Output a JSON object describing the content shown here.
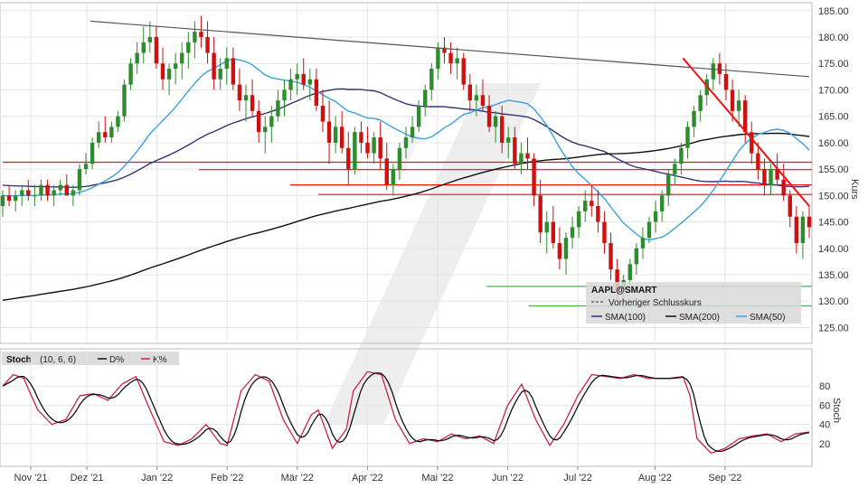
{
  "chart_data": [
    {
      "type": "candlestick",
      "panel": "price",
      "symbol": "AAPL@SMART",
      "ylabel": "Kurs",
      "ylim": [
        122,
        186.5
      ],
      "yticks": [
        125,
        130,
        135,
        140,
        145,
        150,
        155,
        160,
        165,
        170,
        175,
        180,
        185
      ],
      "ytick_labels": [
        "125.00",
        "130.00",
        "135.00",
        "140.00",
        "145.00",
        "150.00",
        "155.00",
        "160.00",
        "165.00",
        "170.00",
        "175.00",
        "180.00",
        "185.00"
      ],
      "x_tick_labels": [
        "Nov '21",
        "Dez '21",
        "Jan '22",
        "Feb '22",
        "Mär '22",
        "Apr '22",
        "Mai '22",
        "Jun '22",
        "Jul '22",
        "Aug '22",
        "Sep '22"
      ],
      "x_tick_positions": [
        8,
        24,
        44,
        64,
        84,
        104,
        124,
        144,
        164,
        186,
        206
      ],
      "x_range": [
        0,
        230
      ],
      "candle_colors": {
        "up": "#2e8b2e",
        "down": "#cc1111"
      },
      "ohlc": [
        [
          148,
          151,
          146,
          150
        ],
        [
          150,
          152,
          148,
          149
        ],
        [
          149,
          151,
          147,
          150
        ],
        [
          150,
          152,
          148,
          151
        ],
        [
          151,
          153,
          149,
          150
        ],
        [
          150,
          152,
          148,
          150
        ],
        [
          150,
          153,
          149,
          152
        ],
        [
          152,
          153,
          149,
          150
        ],
        [
          150,
          152,
          148,
          151
        ],
        [
          151,
          153,
          150,
          152
        ],
        [
          152,
          154,
          150,
          150
        ],
        [
          150,
          152,
          148,
          151
        ],
        [
          151,
          156,
          150,
          155
        ],
        [
          155,
          158,
          154,
          156
        ],
        [
          156,
          161,
          155,
          160
        ],
        [
          160,
          164,
          159,
          162
        ],
        [
          162,
          165,
          160,
          161
        ],
        [
          161,
          164,
          160,
          163
        ],
        [
          163,
          166,
          162,
          165
        ],
        [
          165,
          172,
          164,
          171
        ],
        [
          171,
          176,
          170,
          175
        ],
        [
          175,
          179,
          173,
          177
        ],
        [
          177,
          182,
          175,
          179
        ],
        [
          179,
          183,
          177,
          180
        ],
        [
          180,
          182,
          174,
          175
        ],
        [
          175,
          178,
          170,
          172
        ],
        [
          172,
          175,
          169,
          174
        ],
        [
          174,
          177,
          171,
          175
        ],
        [
          175,
          179,
          172,
          177
        ],
        [
          177,
          181,
          174,
          179
        ],
        [
          179,
          183,
          176,
          181
        ],
        [
          181,
          184,
          178,
          180
        ],
        [
          180,
          183,
          175,
          177
        ],
        [
          177,
          180,
          170,
          172
        ],
        [
          172,
          176,
          170,
          174
        ],
        [
          174,
          178,
          171,
          176
        ],
        [
          176,
          178,
          170,
          171
        ],
        [
          171,
          174,
          166,
          168
        ],
        [
          168,
          171,
          164,
          169
        ],
        [
          169,
          172,
          165,
          166
        ],
        [
          166,
          168,
          160,
          162
        ],
        [
          162,
          165,
          158,
          163
        ],
        [
          163,
          167,
          160,
          165
        ],
        [
          165,
          170,
          164,
          168
        ],
        [
          168,
          172,
          165,
          170
        ],
        [
          170,
          174,
          168,
          172
        ],
        [
          172,
          175,
          169,
          173
        ],
        [
          173,
          176,
          170,
          171
        ],
        [
          171,
          174,
          168,
          172
        ],
        [
          172,
          174,
          166,
          167
        ],
        [
          167,
          170,
          162,
          164
        ],
        [
          164,
          168,
          156,
          160
        ],
        [
          160,
          165,
          158,
          163
        ],
        [
          163,
          166,
          158,
          159
        ],
        [
          159,
          162,
          152,
          155
        ],
        [
          155,
          163,
          154,
          162
        ],
        [
          162,
          164,
          158,
          160
        ],
        [
          160,
          163,
          157,
          158
        ],
        [
          158,
          162,
          156,
          161
        ],
        [
          161,
          164,
          155,
          157
        ],
        [
          157,
          160,
          151,
          152
        ],
        [
          152,
          156,
          150,
          155
        ],
        [
          155,
          160,
          153,
          159
        ],
        [
          159,
          163,
          157,
          161
        ],
        [
          161,
          165,
          160,
          163
        ],
        [
          163,
          168,
          162,
          167
        ],
        [
          167,
          171,
          165,
          170
        ],
        [
          170,
          175,
          168,
          174
        ],
        [
          174,
          179,
          172,
          178
        ],
        [
          178,
          180,
          175,
          177
        ],
        [
          177,
          179,
          173,
          175
        ],
        [
          175,
          178,
          172,
          176
        ],
        [
          176,
          177,
          170,
          171
        ],
        [
          171,
          173,
          166,
          168
        ],
        [
          168,
          171,
          165,
          169
        ],
        [
          169,
          172,
          166,
          167
        ],
        [
          167,
          169,
          162,
          163
        ],
        [
          163,
          166,
          160,
          165
        ],
        [
          165,
          167,
          158,
          160
        ],
        [
          160,
          163,
          157,
          161
        ],
        [
          161,
          163,
          155,
          156
        ],
        [
          156,
          160,
          154,
          158
        ],
        [
          158,
          161,
          155,
          157
        ],
        [
          157,
          158,
          148,
          150
        ],
        [
          150,
          153,
          141,
          143
        ],
        [
          143,
          147,
          139,
          145
        ],
        [
          145,
          148,
          140,
          141
        ],
        [
          141,
          144,
          136,
          138
        ],
        [
          138,
          143,
          135,
          142
        ],
        [
          142,
          146,
          140,
          144
        ],
        [
          144,
          148,
          142,
          147
        ],
        [
          147,
          151,
          145,
          149
        ],
        [
          149,
          152,
          146,
          148
        ],
        [
          148,
          151,
          143,
          145
        ],
        [
          145,
          147,
          139,
          141
        ],
        [
          141,
          143,
          134,
          136
        ],
        [
          136,
          138,
          130,
          132
        ],
        [
          132,
          135,
          129,
          134
        ],
        [
          134,
          138,
          132,
          137
        ],
        [
          137,
          141,
          135,
          140
        ],
        [
          140,
          144,
          138,
          142
        ],
        [
          142,
          146,
          141,
          145
        ],
        [
          145,
          149,
          143,
          147
        ],
        [
          147,
          151,
          145,
          150
        ],
        [
          150,
          155,
          148,
          154
        ],
        [
          154,
          157,
          152,
          156
        ],
        [
          156,
          160,
          154,
          159
        ],
        [
          159,
          164,
          157,
          163
        ],
        [
          163,
          167,
          161,
          166
        ],
        [
          166,
          170,
          164,
          169
        ],
        [
          169,
          173,
          167,
          172
        ],
        [
          172,
          176,
          170,
          175
        ],
        [
          175,
          177,
          171,
          173
        ],
        [
          173,
          175,
          168,
          170
        ],
        [
          170,
          172,
          164,
          166
        ],
        [
          166,
          170,
          163,
          168
        ],
        [
          168,
          169,
          160,
          162
        ],
        [
          162,
          164,
          156,
          158
        ],
        [
          158,
          160,
          153,
          155
        ],
        [
          155,
          157,
          150,
          152
        ],
        [
          152,
          156,
          150,
          155
        ],
        [
          155,
          158,
          152,
          153
        ],
        [
          153,
          156,
          149,
          150
        ],
        [
          150,
          151,
          144,
          146
        ],
        [
          146,
          148,
          139,
          141
        ],
        [
          141,
          147,
          138,
          146
        ],
        [
          146,
          148,
          142,
          144
        ]
      ],
      "overlays": [
        {
          "name": "SMA(100)",
          "color": "#333377"
        },
        {
          "name": "SMA(200)",
          "color": "#111111"
        },
        {
          "name": "SMA(50)",
          "color": "#3aa0e0"
        }
      ],
      "trendlines": [
        {
          "kind": "resistance",
          "color": "#555555",
          "from": [
            25,
            183
          ],
          "to": [
            230,
            172.5
          ]
        },
        {
          "kind": "resistance",
          "color": "#ee1111",
          "from": [
            194,
            176
          ],
          "to": [
            230,
            148
          ]
        }
      ],
      "horizontal_levels": [
        {
          "y": 156.3,
          "color": "#ee1111",
          "from_x": 0
        },
        {
          "y": 154.9,
          "color": "#ee1111",
          "from_x": 56
        },
        {
          "y": 152.0,
          "color": "#ee1111",
          "from_x": 82
        },
        {
          "y": 150.2,
          "color": "#ee1111",
          "from_x": 90
        },
        {
          "y": 132.8,
          "color": "#4caf4c",
          "from_x": 138
        },
        {
          "y": 129.1,
          "color": "#4caf4c",
          "from_x": 150
        }
      ],
      "legend": {
        "placement": "bottom-right",
        "title": "AAPL@SMART",
        "prev_close_label": "Vorheriger Schlusskurs",
        "items": [
          "SMA(100)",
          "SMA(200)",
          "SMA(50)"
        ]
      }
    },
    {
      "type": "line",
      "panel": "stochastic",
      "title": "Stoch",
      "params": "(10, 6, 6)",
      "ylabel": "Stoch",
      "ylim": [
        0,
        100
      ],
      "yticks": [
        20,
        40,
        60,
        80
      ],
      "series": [
        {
          "name": "D%",
          "color": "#111111"
        },
        {
          "name": "K%",
          "color": "#cc2244"
        }
      ],
      "k_anchors": [
        [
          0,
          80
        ],
        [
          3,
          92
        ],
        [
          6,
          88
        ],
        [
          10,
          55
        ],
        [
          14,
          40
        ],
        [
          18,
          45
        ],
        [
          22,
          70
        ],
        [
          26,
          72
        ],
        [
          30,
          65
        ],
        [
          34,
          82
        ],
        [
          38,
          90
        ],
        [
          42,
          55
        ],
        [
          46,
          22
        ],
        [
          50,
          18
        ],
        [
          54,
          25
        ],
        [
          58,
          40
        ],
        [
          62,
          20
        ],
        [
          64,
          18
        ],
        [
          68,
          75
        ],
        [
          72,
          92
        ],
        [
          76,
          85
        ],
        [
          80,
          45
        ],
        [
          84,
          20
        ],
        [
          88,
          50
        ],
        [
          90,
          55
        ],
        [
          94,
          15
        ],
        [
          98,
          35
        ],
        [
          100,
          75
        ],
        [
          104,
          95
        ],
        [
          108,
          92
        ],
        [
          112,
          45
        ],
        [
          116,
          20
        ],
        [
          120,
          25
        ],
        [
          124,
          22
        ],
        [
          128,
          30
        ],
        [
          132,
          25
        ],
        [
          136,
          28
        ],
        [
          140,
          20
        ],
        [
          144,
          60
        ],
        [
          148,
          82
        ],
        [
          152,
          45
        ],
        [
          156,
          18
        ],
        [
          160,
          40
        ],
        [
          164,
          70
        ],
        [
          168,
          92
        ],
        [
          172,
          90
        ],
        [
          176,
          88
        ],
        [
          180,
          92
        ],
        [
          184,
          88
        ],
        [
          190,
          88
        ],
        [
          194,
          90
        ],
        [
          196,
          70
        ],
        [
          198,
          25
        ],
        [
          202,
          10
        ],
        [
          206,
          15
        ],
        [
          210,
          25
        ],
        [
          214,
          28
        ],
        [
          218,
          30
        ],
        [
          222,
          22
        ],
        [
          226,
          30
        ],
        [
          230,
          32
        ]
      ]
    }
  ],
  "header": {
    "title": "Stoch",
    "params": "(10, 6, 6)",
    "series_d": "D%",
    "series_k": "K%"
  }
}
